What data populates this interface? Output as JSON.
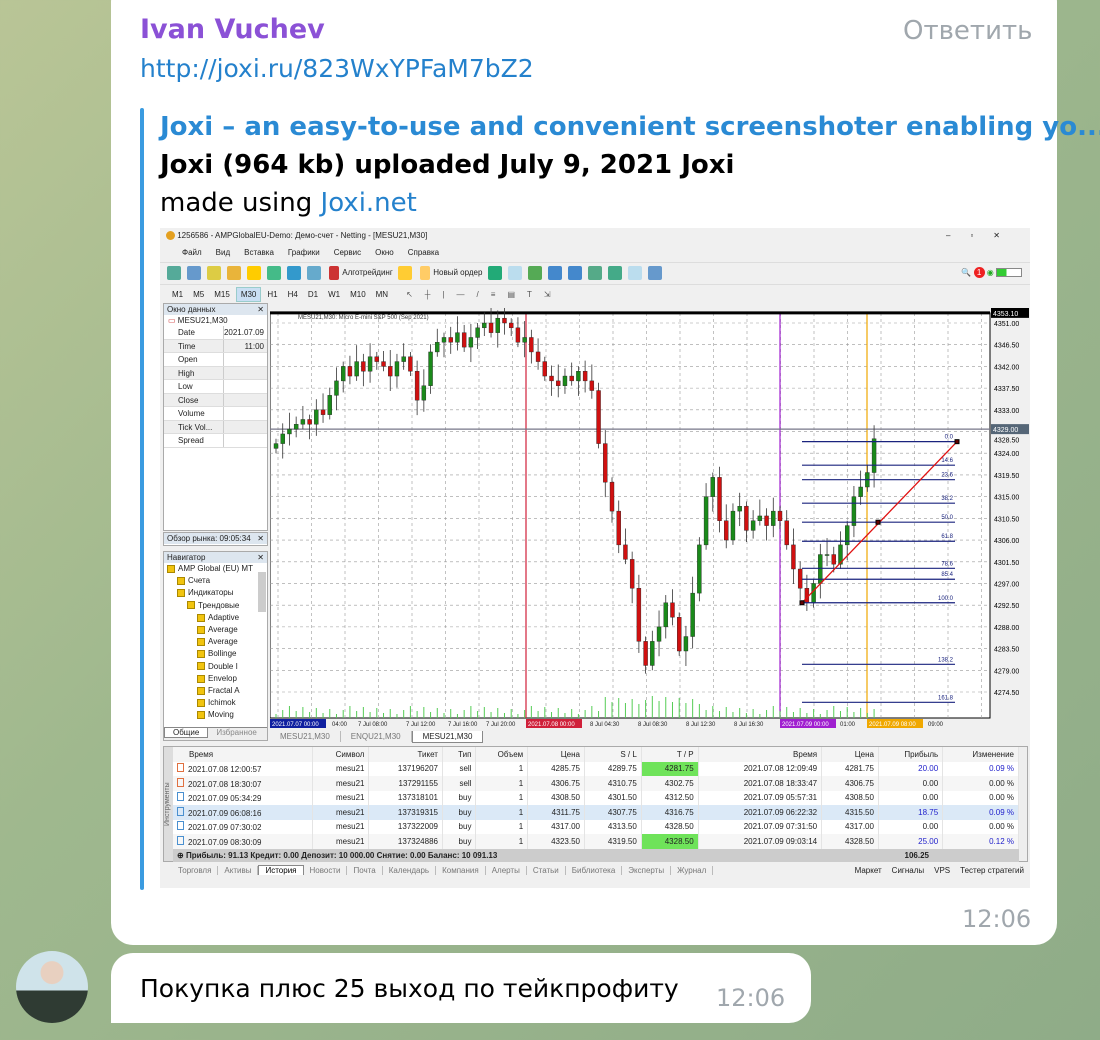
{
  "message1": {
    "sender": "Ivan Vuchev",
    "reply_label": "Ответить",
    "link": "http://joxi.ru/823WxYPFaM7bZ2",
    "preview": {
      "title": "Joxi – an easy-to-use and convenient screenshoter enabling yo...",
      "description": "Joxi (964 kb) uploaded July 9, 2021 Joxi",
      "made_prefix": "made using ",
      "made_link": "Joxi.net"
    },
    "time": "12:06"
  },
  "message2": {
    "text": "Покупка плюс 25 выход по тейкпрофиту",
    "time": "12:06"
  },
  "terminal": {
    "title": "1256586 - AMPGlobalEU-Demo: Демо-счет - Netting - [MESU21,M30]",
    "menu": [
      "Файл",
      "Вид",
      "Вставка",
      "Графики",
      "Сервис",
      "Окно",
      "Справка"
    ],
    "toolbar": {
      "algotrading": "Алготрейдинг",
      "new_order": "Новый ордер",
      "notif_count": "1"
    },
    "timeframes": [
      "M1",
      "M5",
      "M15",
      "M30",
      "H1",
      "H4",
      "D1",
      "W1",
      "M10",
      "MN"
    ],
    "selected_timeframe": "M30",
    "data_window": {
      "title": "Окно данных",
      "symbol": "MESU21,M30",
      "rows": [
        [
          "Date",
          "2021.07.09"
        ],
        [
          "Time",
          "11:00"
        ],
        [
          "Open",
          ""
        ],
        [
          "High",
          ""
        ],
        [
          "Low",
          ""
        ],
        [
          "Close",
          ""
        ],
        [
          "Volume",
          ""
        ],
        [
          "Tick Vol...",
          ""
        ],
        [
          "Spread",
          ""
        ]
      ]
    },
    "market_watch": {
      "title": "Обзор рынка: 09:05:34"
    },
    "navigator": {
      "title": "Навигатор",
      "items": [
        {
          "l": "AMP Global (EU) MT",
          "d": 0
        },
        {
          "l": "Счета",
          "d": 1
        },
        {
          "l": "Индикаторы",
          "d": 1
        },
        {
          "l": "Трендовые",
          "d": 2
        },
        {
          "l": "Adaptive",
          "d": 3
        },
        {
          "l": "Average",
          "d": 3
        },
        {
          "l": "Average",
          "d": 3
        },
        {
          "l": "Bollinge",
          "d": 3
        },
        {
          "l": "Double I",
          "d": 3
        },
        {
          "l": "Envelop",
          "d": 3
        },
        {
          "l": "Fractal A",
          "d": 3
        },
        {
          "l": "Ichimok",
          "d": 3
        },
        {
          "l": "Moving",
          "d": 3
        }
      ],
      "tabs": [
        "Общие",
        "Избранное"
      ]
    },
    "chart": {
      "header": "MESU21,M30: Micro E-mini S&P 500 (Sep 2021)",
      "price_ticks": [
        "4351.00",
        "4346.50",
        "4342.00",
        "4337.50",
        "4333.00",
        "4328.50",
        "4324.00",
        "4319.50",
        "4315.00",
        "4310.50",
        "4306.00",
        "4301.50",
        "4297.00",
        "4292.50",
        "4288.00",
        "4283.50",
        "4279.00",
        "4274.50"
      ],
      "price_labels": {
        "top": "4353.10",
        "current": "4329.00"
      },
      "time_ticks": [
        "2021.07.07 00:00",
        "04:00",
        "7 Jul 08:00",
        "7 Jul 12:00",
        "7 Jul 16:00",
        "7 Jul 20:00",
        "2021.07.08 00:00",
        "8 Jul 04:30",
        "8 Jul 08:30",
        "8 Jul 12:30",
        "8 Jul 16:30",
        "2021.07.09 00:00",
        "01:00",
        "2021.07.09 08:00",
        "09:00"
      ],
      "vlines": [
        {
          "label": "2021.07.08 00:00",
          "color": "#d0203a",
          "price": null
        },
        {
          "label": "2021.07.09 00:00",
          "color": "#a020d0"
        },
        {
          "label": "2021.07.09 08:00",
          "color": "#f0a800"
        }
      ],
      "closes": [
        4326,
        4328,
        4329,
        4330,
        4331,
        4330,
        4333,
        4332,
        4336,
        4339,
        4342,
        4340,
        4343,
        4341,
        4344,
        4343,
        4342,
        4340,
        4343,
        4344,
        4341,
        4335,
        4338,
        4345,
        4347,
        4348,
        4347,
        4349,
        4346,
        4348,
        4350,
        4351,
        4349,
        4352,
        4351,
        4350,
        4347,
        4348,
        4345,
        4343,
        4340,
        4339,
        4338,
        4340,
        4339,
        4341,
        4339,
        4337,
        4326,
        4318,
        4312,
        4305,
        4302,
        4296,
        4285,
        4280,
        4285,
        4288,
        4293,
        4290,
        4283,
        4286,
        4295,
        4305,
        4315,
        4319,
        4310,
        4306,
        4312,
        4313,
        4308,
        4310,
        4311,
        4309,
        4312,
        4310,
        4305,
        4300,
        4296,
        4293,
        4297,
        4303,
        4303,
        4301,
        4305,
        4309,
        4315,
        4317,
        4320,
        4327
      ],
      "fib": {
        "high": 4326.4,
        "low": 4293.0,
        "levels": [
          "0.0",
          "14.6",
          "23.6",
          "38.2",
          "50.0",
          "61.8",
          "78.6",
          "85.4",
          "100.0",
          "138.2",
          "161.8"
        ]
      },
      "tabs": [
        "MESU21,M30",
        "ENQU21,M30",
        "MESU21,M30"
      ],
      "active_tab": 2
    },
    "history": {
      "columns": [
        "Время",
        "Символ",
        "Тикет",
        "Тип",
        "Объем",
        "Цена",
        "S / L",
        "T / P",
        "Время",
        "Цена",
        "Прибыль",
        "Изменение"
      ],
      "rows": [
        [
          "2021.07.08 12:00:57",
          "mesu21",
          "137196207",
          "sell",
          "1",
          "4285.75",
          "4289.75",
          "4281.75",
          "2021.07.08 12:09:49",
          "4281.75",
          "20.00",
          "0.09 %"
        ],
        [
          "2021.07.08 18:30:07",
          "mesu21",
          "137291155",
          "sell",
          "1",
          "4306.75",
          "4310.75",
          "4302.75",
          "2021.07.08 18:33:47",
          "4306.75",
          "0.00",
          "0.00 %"
        ],
        [
          "2021.07.09 05:34:29",
          "mesu21",
          "137318101",
          "buy",
          "1",
          "4308.50",
          "4301.50",
          "4312.50",
          "2021.07.09 05:57:31",
          "4308.50",
          "0.00",
          "0.00 %"
        ],
        [
          "2021.07.09 06:08:16",
          "mesu21",
          "137319315",
          "buy",
          "1",
          "4311.75",
          "4307.75",
          "4316.75",
          "2021.07.09 06:22:32",
          "4315.50",
          "18.75",
          "0.09 %"
        ],
        [
          "2021.07.09 07:30:02",
          "mesu21",
          "137322009",
          "buy",
          "1",
          "4317.00",
          "4313.50",
          "4328.50",
          "2021.07.09 07:31:50",
          "4317.00",
          "0.00",
          "0.00 %"
        ],
        [
          "2021.07.09 08:30:09",
          "mesu21",
          "137324886",
          "buy",
          "1",
          "4323.50",
          "4319.50",
          "4328.50",
          "2021.07.09 09:03:14",
          "4328.50",
          "25.00",
          "0.12 %"
        ]
      ],
      "tp_hit_rows": [
        0,
        5
      ],
      "highlight_row": 3,
      "summary": "Прибыль: 91.13  Кредит: 0.00  Депозит: 10 000.00  Снятие: 0.00  Баланс: 10 091.13",
      "summary_total": "106.25",
      "side_label": "Инструменты"
    },
    "bottom_tabs": [
      "Торговля",
      "Активы",
      "История",
      "Новости",
      "Почта",
      "Календарь",
      "Компания",
      "Алерты",
      "Статьи",
      "Библиотека",
      "Эксперты",
      "Журнал"
    ],
    "active_bottom_tab": 2,
    "right_tabs": [
      "Маркет",
      "Сигналы",
      "VPS",
      "Тестер стратегий"
    ]
  }
}
